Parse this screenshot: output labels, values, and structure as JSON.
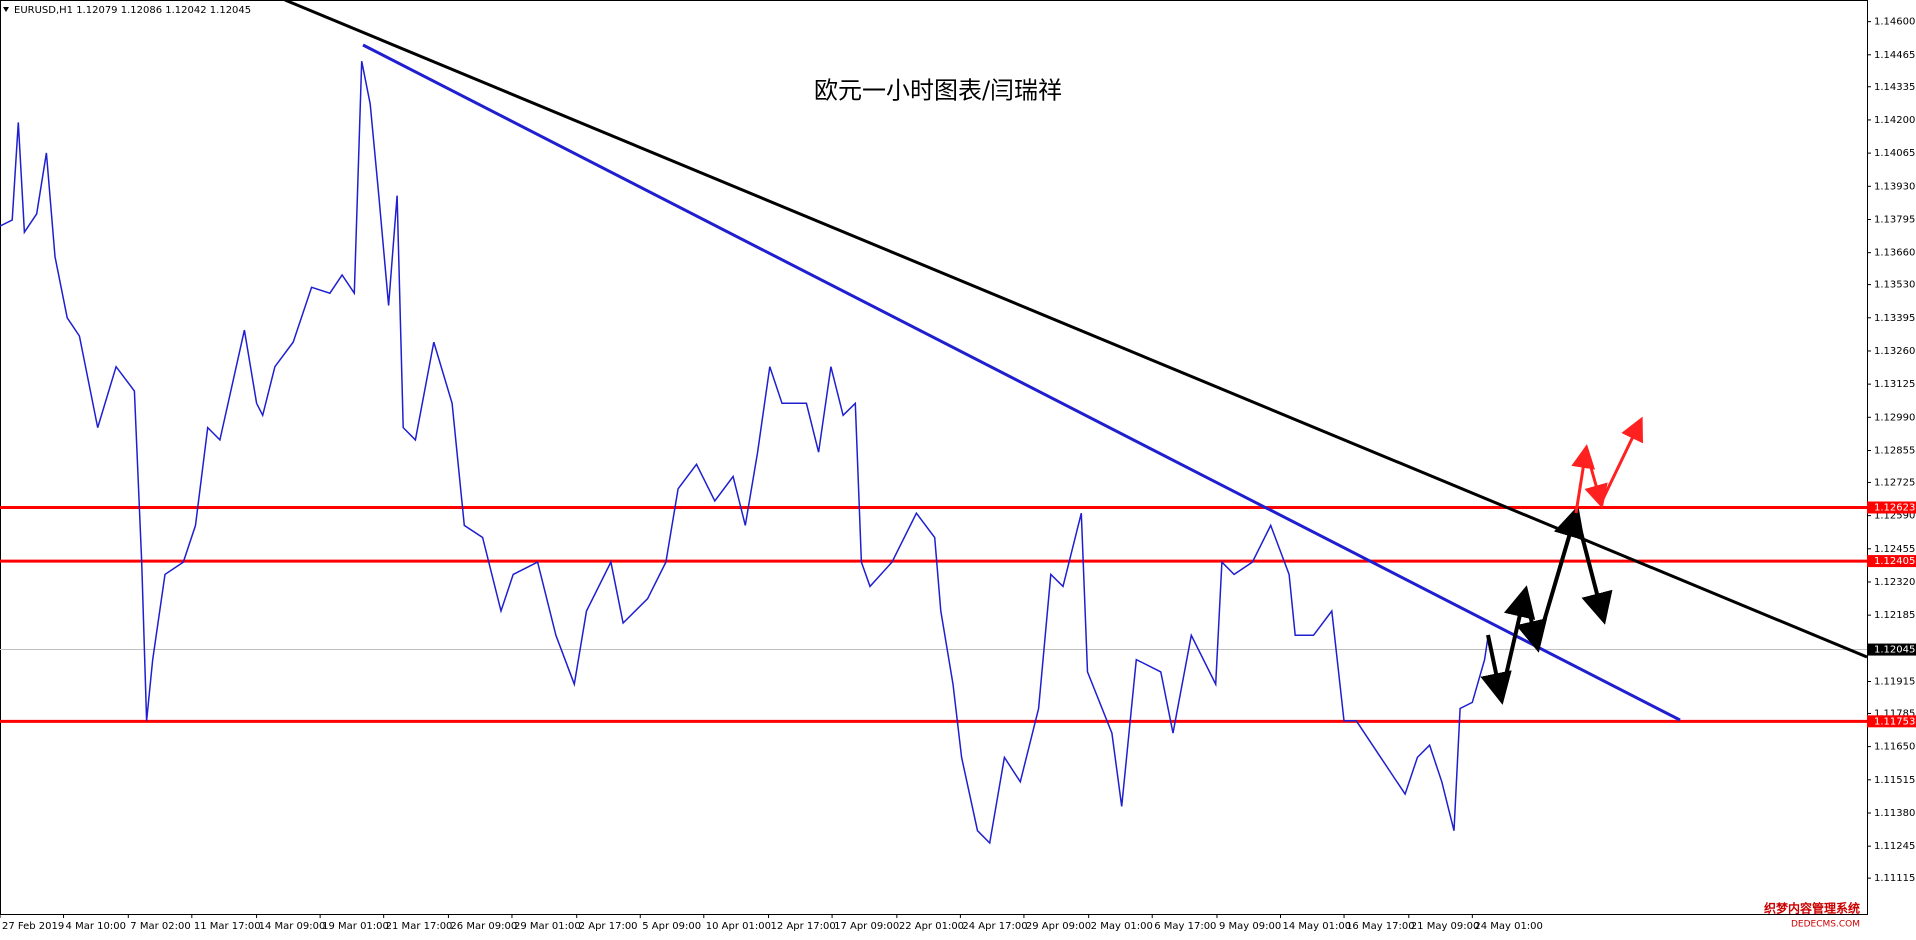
{
  "chart_data": {
    "type": "line",
    "symbol": "EURUSD,H1  1.12079 1.12086 1.12042 1.12045",
    "title": "欧元一小时图表/闫瑞祥",
    "watermark": [
      "织梦内容管理系统",
      "DEDECMS.COM"
    ],
    "xlim": [
      0,
      1528
    ],
    "ylim": [
      1.10969,
      1.14688
    ],
    "xticks": [
      {
        "value": 0,
        "label": "27 Feb 2019"
      },
      {
        "value": 52,
        "label": "4 Mar 10:00"
      },
      {
        "value": 105,
        "label": "7 Mar 02:00"
      },
      {
        "value": 157,
        "label": "11 Mar 17:00"
      },
      {
        "value": 210,
        "label": "14 Mar 09:00"
      },
      {
        "value": 262,
        "label": "19 Mar 01:00"
      },
      {
        "value": 314,
        "label": "21 Mar 17:00"
      },
      {
        "value": 367,
        "label": "26 Mar 09:00"
      },
      {
        "value": 419,
        "label": "29 Mar 01:00"
      },
      {
        "value": 472,
        "label": "2 Apr 17:00"
      },
      {
        "value": 524,
        "label": "5 Apr 09:00"
      },
      {
        "value": 576,
        "label": "10 Apr 01:00"
      },
      {
        "value": 629,
        "label": "12 Apr 17:00"
      },
      {
        "value": 681,
        "label": "17 Apr 09:00"
      },
      {
        "value": 734,
        "label": "22 Apr 01:00"
      },
      {
        "value": 786,
        "label": "24 Apr 17:00"
      },
      {
        "value": 838,
        "label": "29 Apr 09:00"
      },
      {
        "value": 891,
        "label": "2 May 01:00"
      },
      {
        "value": 943,
        "label": "6 May 17:00"
      },
      {
        "value": 996,
        "label": "9 May 09:00"
      },
      {
        "value": 1048,
        "label": "14 May 01:00"
      },
      {
        "value": 1100,
        "label": "16 May 17:00"
      },
      {
        "value": 1153,
        "label": "21 May 09:00"
      },
      {
        "value": 1205,
        "label": "24 May 01:00"
      }
    ],
    "yticks": [
      {
        "value": 1.146,
        "label": "1.14600"
      },
      {
        "value": 1.14465,
        "label": "1.14465"
      },
      {
        "value": 1.14335,
        "label": "1.14335"
      },
      {
        "value": 1.142,
        "label": "1.14200"
      },
      {
        "value": 1.14065,
        "label": "1.14065"
      },
      {
        "value": 1.1393,
        "label": "1.13930"
      },
      {
        "value": 1.13795,
        "label": "1.13795"
      },
      {
        "value": 1.1366,
        "label": "1.13660"
      },
      {
        "value": 1.1353,
        "label": "1.13530"
      },
      {
        "value": 1.13395,
        "label": "1.13395"
      },
      {
        "value": 1.1326,
        "label": "1.13260"
      },
      {
        "value": 1.13125,
        "label": "1.13125"
      },
      {
        "value": 1.1299,
        "label": "1.12990"
      },
      {
        "value": 1.12855,
        "label": "1.12855"
      },
      {
        "value": 1.12725,
        "label": "1.12725"
      },
      {
        "value": 1.1259,
        "label": "1.12590"
      },
      {
        "value": 1.12455,
        "label": "1.12455"
      },
      {
        "value": 1.1232,
        "label": "1.12320"
      },
      {
        "value": 1.12185,
        "label": "1.12185"
      },
      {
        "value": 1.11915,
        "label": "1.11915"
      },
      {
        "value": 1.11785,
        "label": "1.11785"
      },
      {
        "value": 1.1165,
        "label": "1.11650"
      },
      {
        "value": 1.11515,
        "label": "1.11515"
      },
      {
        "value": 1.1138,
        "label": "1.11380"
      },
      {
        "value": 1.11245,
        "label": "1.11245"
      },
      {
        "value": 1.11115,
        "label": "1.11115"
      }
    ],
    "levels": [
      {
        "value": 1.12623,
        "color": "#ff0000"
      },
      {
        "value": 1.12405,
        "color": "#ff0000"
      },
      {
        "value": 1.11753,
        "color": "#ff0000"
      }
    ],
    "last_price": {
      "value": 1.12045,
      "color": "#000000"
    },
    "series": [
      {
        "color": "#1f1fd0",
        "x": [
          0,
          10,
          15,
          20,
          30,
          38,
          45,
          55,
          65,
          80,
          95,
          110,
          116,
          120,
          125,
          135,
          150,
          160,
          170,
          180,
          200,
          210,
          215,
          225,
          240,
          255,
          270,
          280,
          290,
          296,
          303,
          310,
          318,
          325,
          330,
          340,
          355,
          370,
          380,
          395,
          410,
          420,
          440,
          455,
          470,
          480,
          500,
          510,
          530,
          545,
          555,
          570,
          585,
          600,
          610,
          620,
          630,
          640,
          660,
          670,
          680,
          690,
          700,
          705,
          712,
          730,
          750,
          765,
          770,
          780,
          787,
          800,
          810,
          822,
          835,
          850,
          860,
          870,
          885,
          890,
          910,
          918,
          930,
          950,
          960,
          975,
          995,
          1000,
          1010,
          1025,
          1040,
          1055,
          1060,
          1075,
          1090,
          1100,
          1110,
          1130,
          1150,
          1160,
          1170,
          1180,
          1190,
          1195,
          1205,
          1215,
          1218
        ],
        "values": [
          1.13768,
          1.13793,
          1.1419,
          1.13743,
          1.13818,
          1.14066,
          1.13644,
          1.13395,
          1.13321,
          1.12948,
          1.13196,
          1.13097,
          1.12401,
          1.11755,
          1.12004,
          1.12351,
          1.12401,
          1.1255,
          1.12948,
          1.12898,
          1.13345,
          1.13047,
          1.12998,
          1.13196,
          1.13296,
          1.13519,
          1.13495,
          1.13569,
          1.13495,
          1.14439,
          1.14265,
          1.13892,
          1.13445,
          1.13892,
          1.12948,
          1.12898,
          1.13296,
          1.13047,
          1.1255,
          1.12501,
          1.12202,
          1.12351,
          1.12401,
          1.12103,
          1.11904,
          1.12202,
          1.12401,
          1.12153,
          1.12252,
          1.12401,
          1.12699,
          1.12799,
          1.1265,
          1.12749,
          1.1255,
          1.12848,
          1.13196,
          1.13047,
          1.13047,
          1.12848,
          1.13196,
          1.12998,
          1.13047,
          1.12401,
          1.12302,
          1.12401,
          1.126,
          1.12501,
          1.12202,
          1.11904,
          1.11606,
          1.11308,
          1.11258,
          1.11606,
          1.11507,
          1.11805,
          1.12351,
          1.12302,
          1.126,
          1.11954,
          1.11705,
          1.11407,
          1.12004,
          1.11954,
          1.11705,
          1.12103,
          1.11904,
          1.12401,
          1.12351,
          1.12401,
          1.1255,
          1.12351,
          1.12103,
          1.12103,
          1.12202,
          1.11755,
          1.11755,
          1.11606,
          1.11457,
          1.11606,
          1.11656,
          1.11507,
          1.11308,
          1.11805,
          1.1183,
          1.12004,
          1.12103
        ]
      }
    ]
  }
}
